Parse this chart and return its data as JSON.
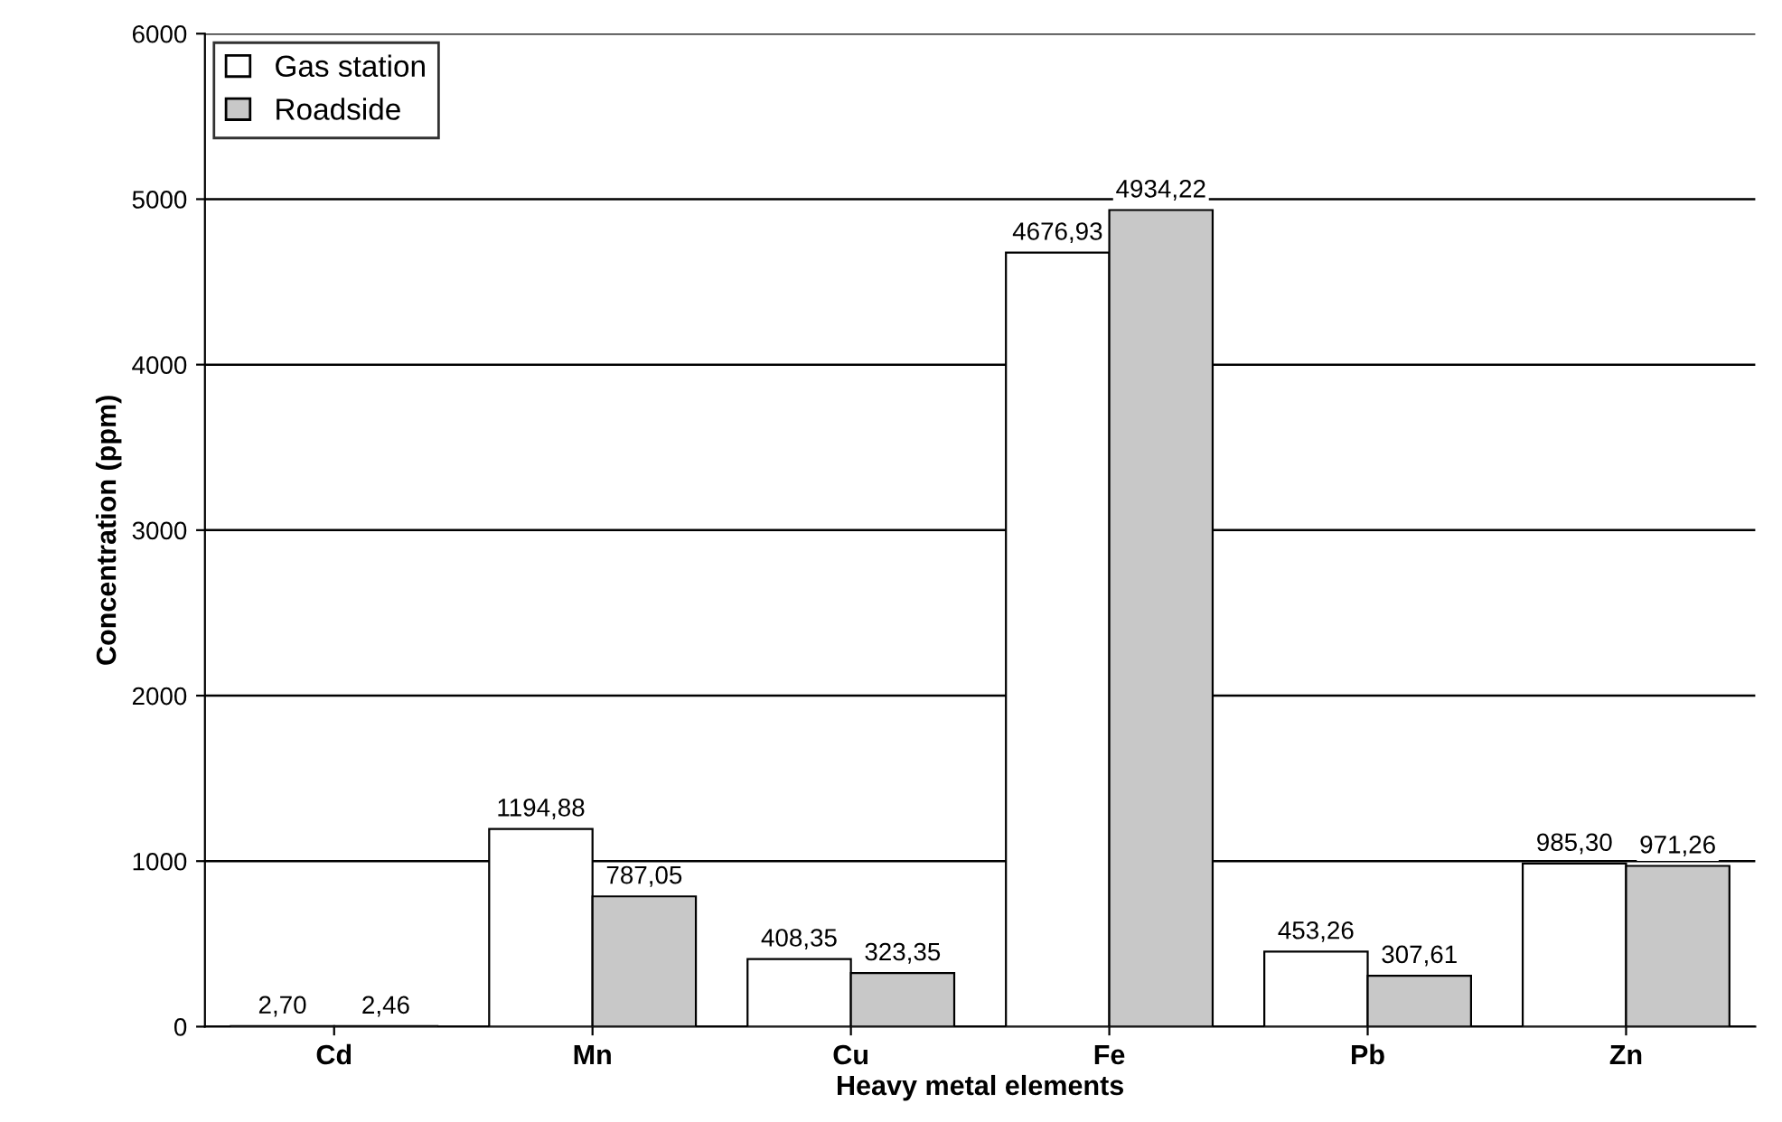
{
  "chart_data": {
    "type": "bar",
    "xlabel": "Heavy metal elements",
    "ylabel": "Concentration (ppm)",
    "categories": [
      "Cd",
      "Mn",
      "Cu",
      "Fe",
      "Pb",
      "Zn"
    ],
    "series": [
      {
        "name": "Gas station",
        "color": "#ffffff",
        "values": [
          2.7,
          1194.88,
          408.35,
          4676.93,
          453.26,
          985.3
        ],
        "value_labels": [
          "2,70",
          "1194,88",
          "408,35",
          "4676,93",
          "453,26",
          "985,30"
        ]
      },
      {
        "name": "Roadside",
        "color": "#c8c8c8",
        "values": [
          2.46,
          787.05,
          323.35,
          4934.22,
          307.61,
          971.26
        ],
        "value_labels": [
          "2,46",
          "787,05",
          "323,35",
          "4934,22",
          "307,61",
          "971,26"
        ]
      }
    ],
    "ylim": [
      0,
      6000
    ],
    "yticks": [
      0,
      1000,
      2000,
      3000,
      4000,
      5000,
      6000
    ],
    "grid": "y",
    "legend": "top left"
  }
}
